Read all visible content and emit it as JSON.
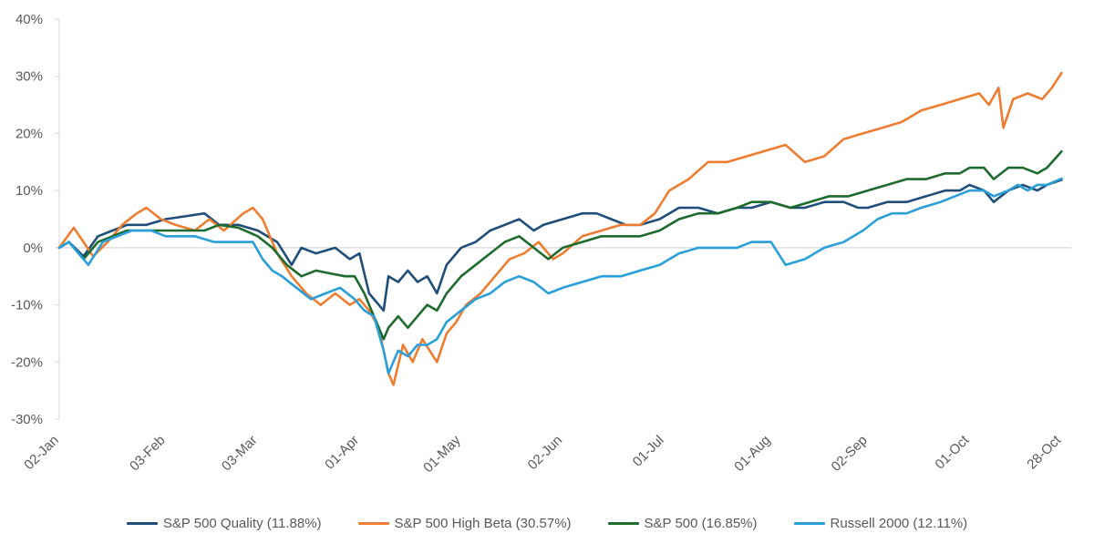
{
  "chart_data": {
    "type": "line",
    "title": "",
    "xlabel": "",
    "ylabel": "",
    "ylim": [
      -30,
      40
    ],
    "y_ticks": [
      -30,
      -20,
      -10,
      0,
      10,
      20,
      30,
      40
    ],
    "y_tick_labels": [
      "-30%",
      "-20%",
      "-10%",
      "0%",
      "10%",
      "20%",
      "30%",
      "40%"
    ],
    "x_range": [
      0,
      209
    ],
    "x_ticks": [
      {
        "label": "02-Jan",
        "x": 0
      },
      {
        "label": "03-Feb",
        "x": 22
      },
      {
        "label": "03-Mar",
        "x": 41
      },
      {
        "label": "01-Apr",
        "x": 62
      },
      {
        "label": "01-May",
        "x": 83
      },
      {
        "label": "02-Jun",
        "x": 104
      },
      {
        "label": "01-Jul",
        "x": 125
      },
      {
        "label": "01-Aug",
        "x": 147
      },
      {
        "label": "02-Sep",
        "x": 167
      },
      {
        "label": "01-Oct",
        "x": 188
      },
      {
        "label": "28-Oct",
        "x": 207
      }
    ],
    "grid": false,
    "legend_position": "bottom",
    "series": [
      {
        "name": "S&P 500 Quality (11.88%)",
        "color": "#1f4e79",
        "points": [
          [
            0,
            0
          ],
          [
            2,
            1
          ],
          [
            5,
            -1.5
          ],
          [
            8,
            2
          ],
          [
            11,
            3
          ],
          [
            14,
            4
          ],
          [
            18,
            4
          ],
          [
            22,
            5
          ],
          [
            26,
            5.5
          ],
          [
            30,
            6
          ],
          [
            33,
            4
          ],
          [
            37,
            4
          ],
          [
            41,
            3
          ],
          [
            45,
            1
          ],
          [
            48,
            -3
          ],
          [
            50,
            0
          ],
          [
            53,
            -1
          ],
          [
            57,
            0
          ],
          [
            60,
            -2
          ],
          [
            62,
            -1
          ],
          [
            64,
            -8
          ],
          [
            66,
            -10
          ],
          [
            67,
            -11
          ],
          [
            68,
            -5
          ],
          [
            70,
            -6
          ],
          [
            72,
            -4
          ],
          [
            74,
            -6
          ],
          [
            76,
            -5
          ],
          [
            78,
            -8
          ],
          [
            80,
            -3
          ],
          [
            83,
            0
          ],
          [
            86,
            1
          ],
          [
            89,
            3
          ],
          [
            92,
            4
          ],
          [
            95,
            5
          ],
          [
            98,
            3
          ],
          [
            100,
            4
          ],
          [
            104,
            5
          ],
          [
            108,
            6
          ],
          [
            111,
            6
          ],
          [
            114,
            5
          ],
          [
            117,
            4
          ],
          [
            120,
            4
          ],
          [
            124,
            5
          ],
          [
            128,
            7
          ],
          [
            132,
            7
          ],
          [
            136,
            6
          ],
          [
            140,
            7
          ],
          [
            143,
            7
          ],
          [
            147,
            8
          ],
          [
            151,
            7
          ],
          [
            154,
            7
          ],
          [
            158,
            8
          ],
          [
            162,
            8
          ],
          [
            165,
            7
          ],
          [
            167,
            7
          ],
          [
            171,
            8
          ],
          [
            175,
            8
          ],
          [
            179,
            9
          ],
          [
            183,
            10
          ],
          [
            186,
            10
          ],
          [
            188,
            11
          ],
          [
            191,
            10
          ],
          [
            193,
            8
          ],
          [
            196,
            10
          ],
          [
            199,
            11
          ],
          [
            202,
            10
          ],
          [
            204,
            11
          ],
          [
            207,
            11.88
          ]
        ]
      },
      {
        "name": "S&P 500 High Beta (30.57%)",
        "color": "#ed7d31",
        "points": [
          [
            0,
            0
          ],
          [
            3,
            3.5
          ],
          [
            5,
            1
          ],
          [
            7,
            -1.5
          ],
          [
            10,
            1
          ],
          [
            13,
            4
          ],
          [
            16,
            6
          ],
          [
            18,
            7
          ],
          [
            21,
            5
          ],
          [
            24,
            4
          ],
          [
            28,
            3
          ],
          [
            31,
            5
          ],
          [
            34,
            3
          ],
          [
            38,
            6
          ],
          [
            40,
            7
          ],
          [
            42,
            5
          ],
          [
            45,
            -1
          ],
          [
            48,
            -5
          ],
          [
            51,
            -8
          ],
          [
            54,
            -10
          ],
          [
            57,
            -8
          ],
          [
            60,
            -10
          ],
          [
            62,
            -9
          ],
          [
            64,
            -11
          ],
          [
            66,
            -14
          ],
          [
            68,
            -22
          ],
          [
            69,
            -24
          ],
          [
            71,
            -17
          ],
          [
            73,
            -20
          ],
          [
            75,
            -16
          ],
          [
            78,
            -20
          ],
          [
            80,
            -15
          ],
          [
            82,
            -13
          ],
          [
            84,
            -10
          ],
          [
            87,
            -8
          ],
          [
            90,
            -5
          ],
          [
            93,
            -2
          ],
          [
            96,
            -1
          ],
          [
            99,
            1
          ],
          [
            102,
            -2
          ],
          [
            104,
            -1
          ],
          [
            108,
            2
          ],
          [
            112,
            3
          ],
          [
            116,
            4
          ],
          [
            120,
            4
          ],
          [
            123,
            6
          ],
          [
            126,
            10
          ],
          [
            130,
            12
          ],
          [
            134,
            15
          ],
          [
            138,
            15
          ],
          [
            142,
            16
          ],
          [
            146,
            17
          ],
          [
            150,
            18
          ],
          [
            154,
            15
          ],
          [
            158,
            16
          ],
          [
            162,
            19
          ],
          [
            166,
            20
          ],
          [
            170,
            21
          ],
          [
            174,
            22
          ],
          [
            178,
            24
          ],
          [
            182,
            25
          ],
          [
            186,
            26
          ],
          [
            190,
            27
          ],
          [
            192,
            25
          ],
          [
            194,
            28
          ],
          [
            195,
            21
          ],
          [
            197,
            26
          ],
          [
            200,
            27
          ],
          [
            203,
            26
          ],
          [
            205,
            28
          ],
          [
            207,
            30.57
          ]
        ]
      },
      {
        "name": "S&P 500 (16.85%)",
        "color": "#1e6b2e",
        "points": [
          [
            0,
            0
          ],
          [
            2,
            1
          ],
          [
            5,
            -2
          ],
          [
            8,
            1
          ],
          [
            11,
            2
          ],
          [
            14,
            3
          ],
          [
            18,
            3
          ],
          [
            22,
            3
          ],
          [
            26,
            3
          ],
          [
            30,
            3
          ],
          [
            33,
            4
          ],
          [
            37,
            3.5
          ],
          [
            41,
            2
          ],
          [
            44,
            0
          ],
          [
            47,
            -3
          ],
          [
            50,
            -5
          ],
          [
            53,
            -4
          ],
          [
            56,
            -4.5
          ],
          [
            59,
            -5
          ],
          [
            61,
            -5
          ],
          [
            63,
            -8
          ],
          [
            65,
            -12
          ],
          [
            67,
            -16
          ],
          [
            68,
            -14
          ],
          [
            70,
            -12
          ],
          [
            72,
            -14
          ],
          [
            74,
            -12
          ],
          [
            76,
            -10
          ],
          [
            78,
            -11
          ],
          [
            80,
            -8
          ],
          [
            83,
            -5
          ],
          [
            86,
            -3
          ],
          [
            89,
            -1
          ],
          [
            92,
            1
          ],
          [
            95,
            2
          ],
          [
            98,
            0
          ],
          [
            101,
            -2
          ],
          [
            104,
            0
          ],
          [
            108,
            1
          ],
          [
            112,
            2
          ],
          [
            116,
            2
          ],
          [
            120,
            2
          ],
          [
            124,
            3
          ],
          [
            128,
            5
          ],
          [
            132,
            6
          ],
          [
            136,
            6
          ],
          [
            140,
            7
          ],
          [
            143,
            8
          ],
          [
            147,
            8
          ],
          [
            151,
            7
          ],
          [
            155,
            8
          ],
          [
            159,
            9
          ],
          [
            163,
            9
          ],
          [
            167,
            10
          ],
          [
            171,
            11
          ],
          [
            175,
            12
          ],
          [
            179,
            12
          ],
          [
            183,
            13
          ],
          [
            186,
            13
          ],
          [
            188,
            14
          ],
          [
            191,
            14
          ],
          [
            193,
            12
          ],
          [
            196,
            14
          ],
          [
            199,
            14
          ],
          [
            202,
            13
          ],
          [
            204,
            14
          ],
          [
            207,
            16.85
          ]
        ]
      },
      {
        "name": "Russell 2000 (12.11%)",
        "color": "#2a9fd8",
        "points": [
          [
            0,
            0
          ],
          [
            2,
            1
          ],
          [
            4,
            -1
          ],
          [
            6,
            -3
          ],
          [
            9,
            1
          ],
          [
            12,
            2
          ],
          [
            15,
            3
          ],
          [
            19,
            3
          ],
          [
            22,
            2
          ],
          [
            25,
            2
          ],
          [
            28,
            2
          ],
          [
            32,
            1
          ],
          [
            36,
            1
          ],
          [
            40,
            1
          ],
          [
            42,
            -2
          ],
          [
            44,
            -4
          ],
          [
            46,
            -5
          ],
          [
            49,
            -7
          ],
          [
            52,
            -9
          ],
          [
            55,
            -8
          ],
          [
            58,
            -7
          ],
          [
            61,
            -9
          ],
          [
            63,
            -11
          ],
          [
            65,
            -12
          ],
          [
            67,
            -18
          ],
          [
            68,
            -22
          ],
          [
            70,
            -18
          ],
          [
            72,
            -19
          ],
          [
            74,
            -17
          ],
          [
            76,
            -17
          ],
          [
            78,
            -16
          ],
          [
            80,
            -13
          ],
          [
            83,
            -11
          ],
          [
            86,
            -9
          ],
          [
            89,
            -8
          ],
          [
            92,
            -6
          ],
          [
            95,
            -5
          ],
          [
            98,
            -6
          ],
          [
            101,
            -8
          ],
          [
            104,
            -7
          ],
          [
            108,
            -6
          ],
          [
            112,
            -5
          ],
          [
            116,
            -5
          ],
          [
            120,
            -4
          ],
          [
            124,
            -3
          ],
          [
            128,
            -1
          ],
          [
            132,
            0
          ],
          [
            136,
            0
          ],
          [
            140,
            0
          ],
          [
            143,
            1
          ],
          [
            147,
            1
          ],
          [
            150,
            -3
          ],
          [
            154,
            -2
          ],
          [
            158,
            0
          ],
          [
            162,
            1
          ],
          [
            166,
            3
          ],
          [
            169,
            5
          ],
          [
            172,
            6
          ],
          [
            175,
            6
          ],
          [
            178,
            7
          ],
          [
            182,
            8
          ],
          [
            185,
            9
          ],
          [
            188,
            10
          ],
          [
            191,
            10
          ],
          [
            193,
            9
          ],
          [
            196,
            10
          ],
          [
            198,
            11
          ],
          [
            200,
            10
          ],
          [
            202,
            11
          ],
          [
            204,
            11
          ],
          [
            207,
            12.11
          ]
        ]
      }
    ]
  }
}
